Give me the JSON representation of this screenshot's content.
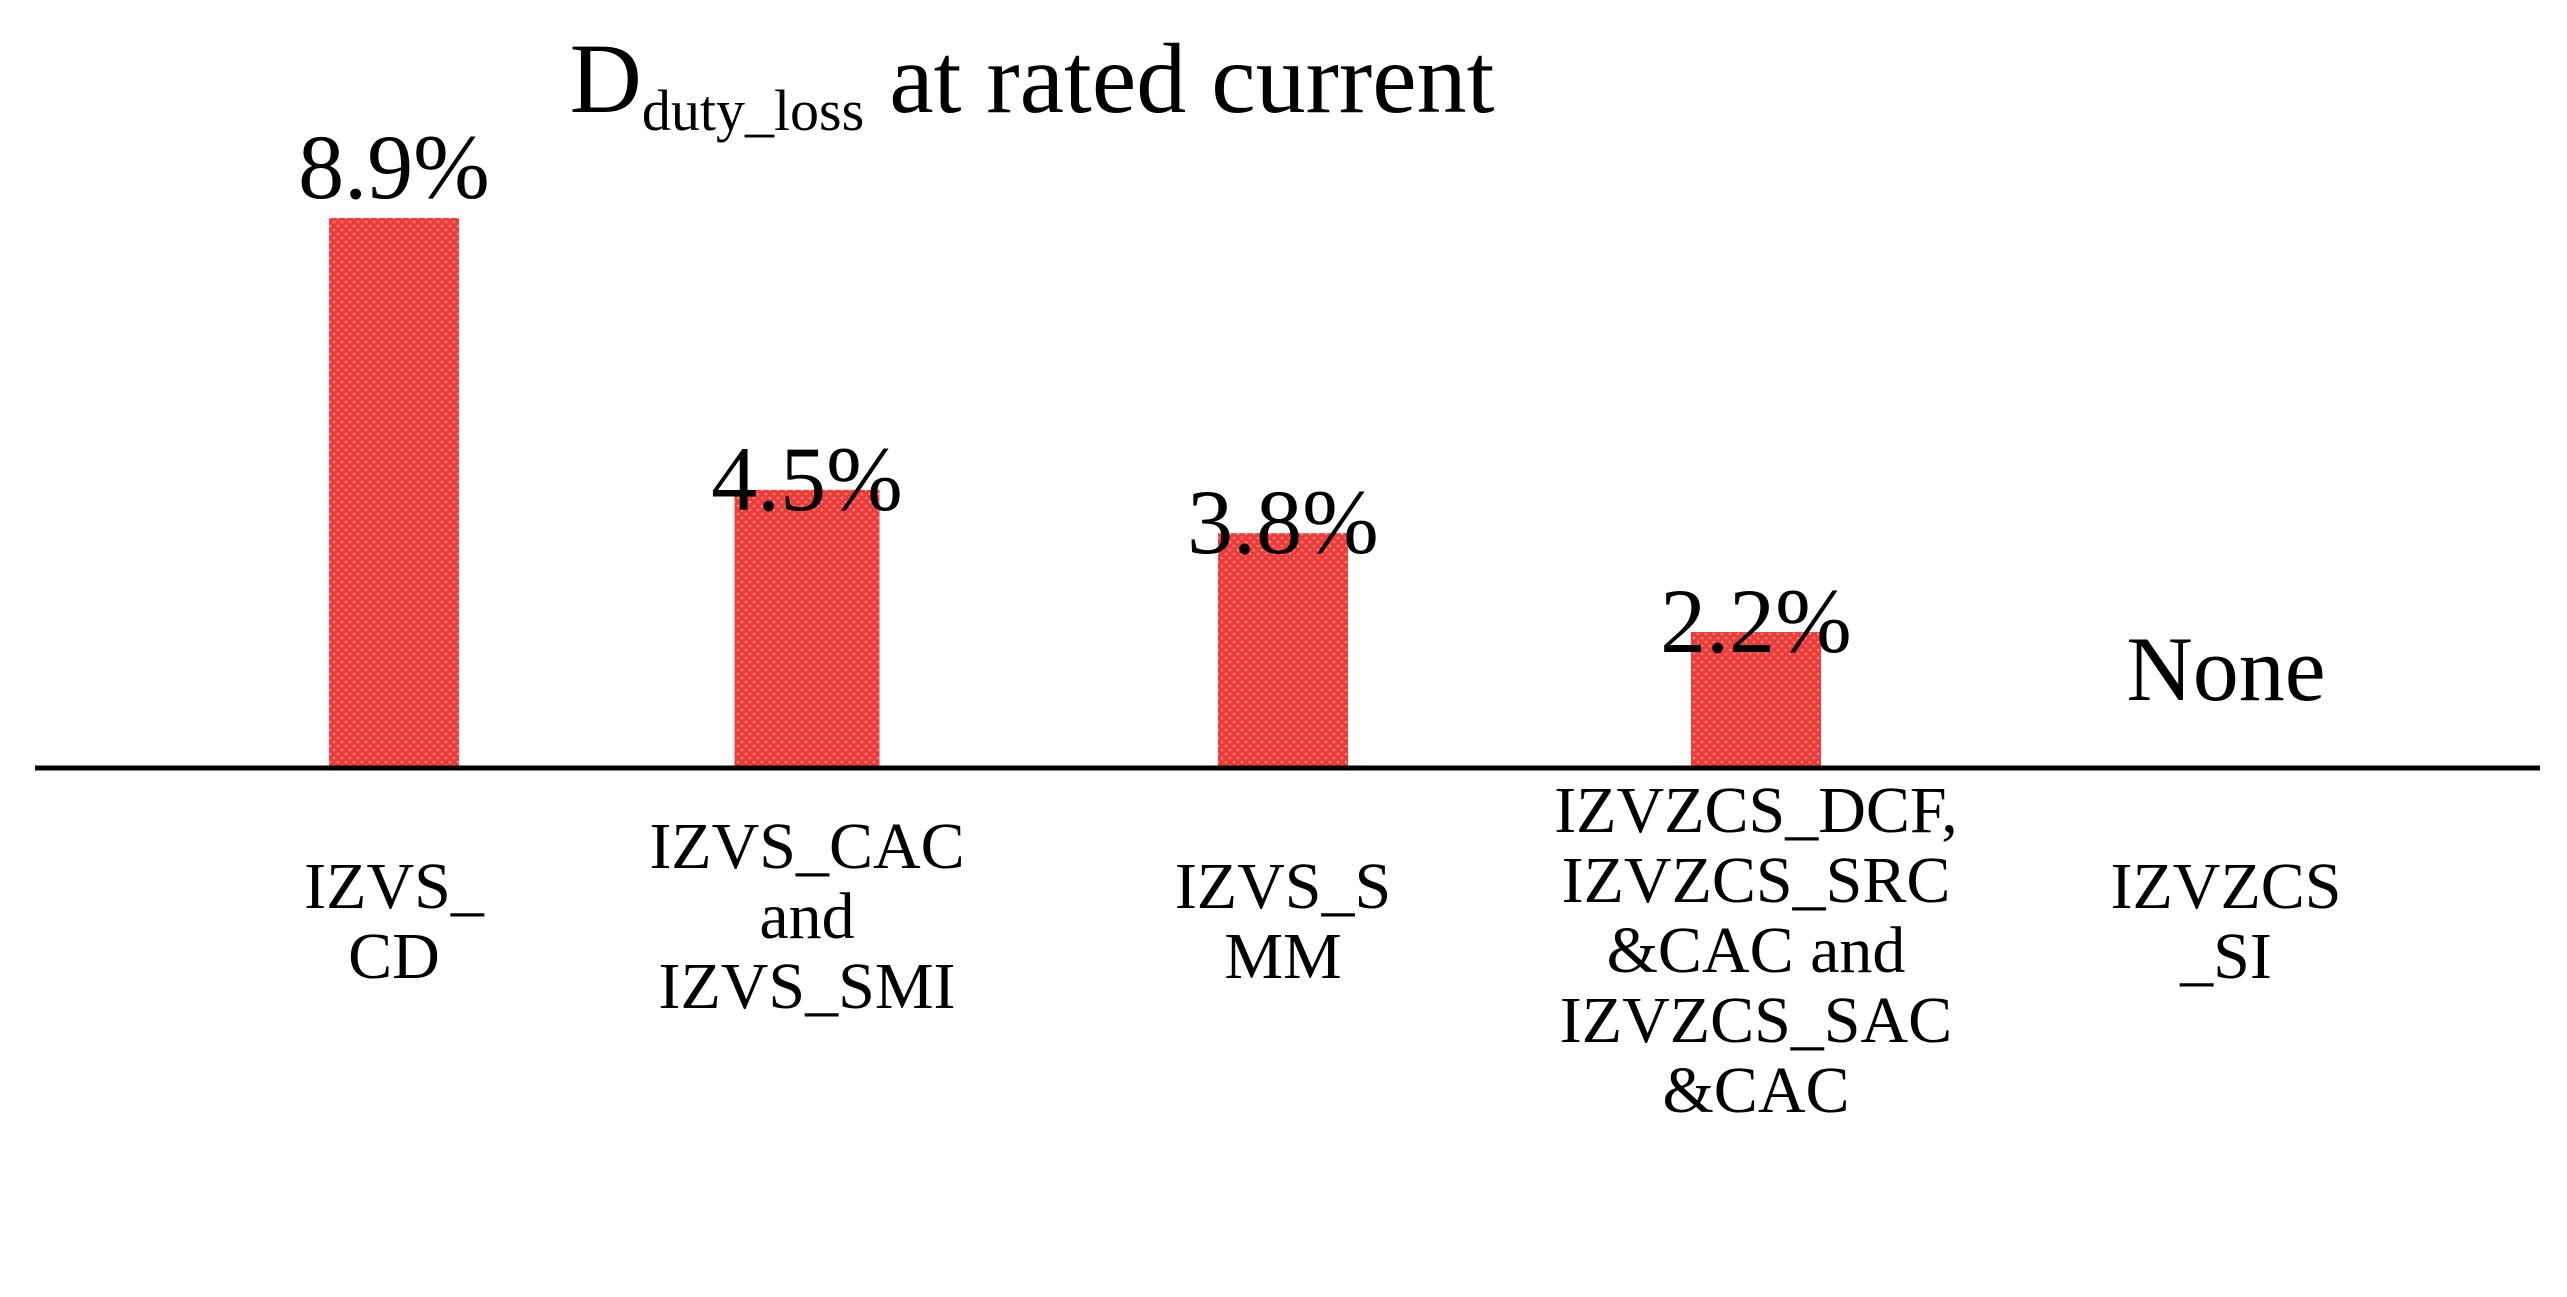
{
  "chart_data": {
    "type": "bar",
    "title": {
      "main": "D",
      "subscript": "duty_loss",
      "rest": " at rated current"
    },
    "categories": [
      [
        "IZVS_",
        "CD"
      ],
      [
        "IZVS_CAC",
        "and",
        "IZVS_SMI"
      ],
      [
        "IZVS_S",
        "MM"
      ],
      [
        "IZVZCS_DCF,",
        "IZVZCS_SRC",
        "&CAC and",
        "IZVZCS_SAC",
        "&CAC"
      ],
      [
        "IZVZCS",
        "_SI"
      ]
    ],
    "values": [
      8.9,
      4.5,
      3.8,
      2.2,
      null
    ],
    "value_labels": [
      "8.9%",
      "4.5%",
      "3.8%",
      "2.2%",
      "None"
    ],
    "unit": "%",
    "ylim": [
      0,
      9
    ],
    "grid": false,
    "legend": "none",
    "colors": {
      "bar_fill": "#f03a3a",
      "bar_dot": "#ff8a7a",
      "axis": "#000000",
      "text": "#000000"
    }
  }
}
